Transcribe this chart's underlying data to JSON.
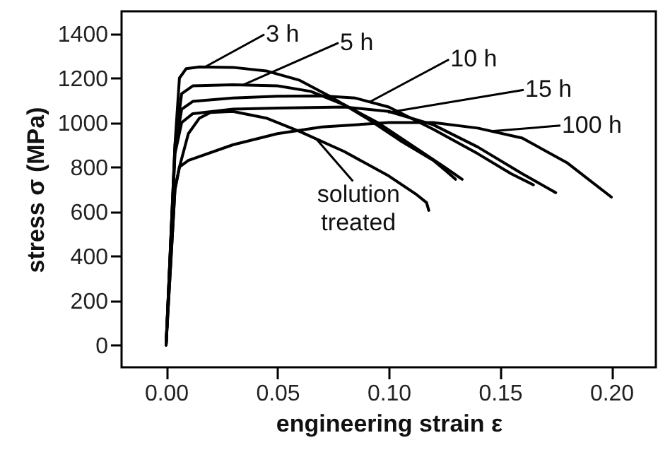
{
  "chart_data": {
    "type": "line",
    "xlabel": "engineering strain ε",
    "ylabel": "stress σ (MPa)",
    "xlim": [
      -0.02,
      0.22
    ],
    "xticks": [
      {
        "value": 0,
        "label": "0.00"
      },
      {
        "value": 0.05,
        "label": "0.05"
      },
      {
        "value": 0.1,
        "label": "0.10"
      },
      {
        "value": 0.15,
        "label": "0.15"
      },
      {
        "value": 0.2,
        "label": "0.20"
      }
    ],
    "ylim": [
      -100,
      1500
    ],
    "yticks": [
      0,
      200,
      400,
      600,
      800,
      1000,
      1200,
      1400
    ],
    "grid": false,
    "marker": "none",
    "line_style": "solid",
    "series": [
      {
        "color": "#000000",
        "x": [
          0,
          0.004,
          0.006,
          0.009,
          0.015,
          0.03,
          0.045,
          0.06,
          0.075,
          0.09,
          0.105,
          0.12,
          0.126,
          0.13
        ],
        "values": [
          0,
          900,
          1200,
          1242,
          1250,
          1248,
          1232,
          1190,
          1110,
          1020,
          920,
          830,
          780,
          745
        ]
      },
      {
        "color": "#000000",
        "x": [
          0,
          0.004,
          0.007,
          0.012,
          0.03,
          0.05,
          0.065,
          0.08,
          0.095,
          0.11,
          0.125,
          0.133
        ],
        "values": [
          0,
          900,
          1130,
          1165,
          1170,
          1165,
          1140,
          1080,
          1000,
          900,
          800,
          745
        ]
      },
      {
        "color": "#000000",
        "x": [
          0,
          0.004,
          0.007,
          0.012,
          0.03,
          0.05,
          0.07,
          0.085,
          0.1,
          0.12,
          0.14,
          0.155,
          0.165
        ],
        "values": [
          0,
          880,
          1060,
          1095,
          1110,
          1118,
          1120,
          1110,
          1070,
          970,
          860,
          770,
          720
        ]
      },
      {
        "color": "#000000",
        "x": [
          0,
          0.004,
          0.007,
          0.012,
          0.03,
          0.05,
          0.08,
          0.1,
          0.12,
          0.14,
          0.16,
          0.175
        ],
        "values": [
          0,
          860,
          1000,
          1040,
          1060,
          1065,
          1070,
          1050,
          990,
          890,
          770,
          685
        ]
      },
      {
        "color": "#000000",
        "x": [
          0,
          0.004,
          0.006,
          0.01,
          0.03,
          0.05,
          0.07,
          0.1,
          0.12,
          0.14,
          0.16,
          0.18,
          0.2
        ],
        "values": [
          0,
          700,
          800,
          830,
          900,
          950,
          980,
          1000,
          1000,
          975,
          930,
          820,
          665
        ]
      },
      {
        "color": "#000000",
        "x": [
          0,
          0.004,
          0.006,
          0.01,
          0.015,
          0.02,
          0.03,
          0.045,
          0.06,
          0.08,
          0.1,
          0.112,
          0.117,
          0.118
        ],
        "values": [
          0,
          700,
          800,
          950,
          1020,
          1045,
          1050,
          1020,
          960,
          870,
          760,
          680,
          640,
          605
        ]
      }
    ],
    "annotations": [
      {
        "text": "3 h",
        "x": 0.0175,
        "y": 1250
      },
      {
        "text": "5 h",
        "x": 0.0343,
        "y": 1168
      },
      {
        "text": "10 h",
        "x": 0.0915,
        "y": 1093
      },
      {
        "text": "15 h",
        "x": 0.0997,
        "y": 1045
      },
      {
        "text": "100 h",
        "x": 0.146,
        "y": 961
      },
      {
        "text": "solution\ntreated",
        "x": 0.0674,
        "y": 927
      }
    ]
  }
}
